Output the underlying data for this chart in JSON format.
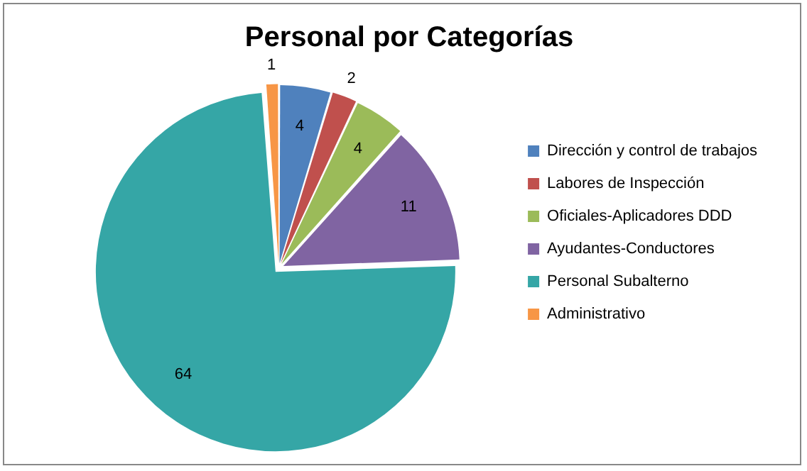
{
  "chart_data": {
    "type": "pie",
    "title": "Personal por Categorías",
    "categories": [
      "Dirección y control de trabajos",
      "Labores de Inspección",
      "Oficiales-Aplicadores DDD",
      "Ayudantes-Conductores",
      "Personal Subalterno",
      "Administrativo"
    ],
    "values": [
      4,
      2,
      4,
      11,
      64,
      1
    ],
    "colors": [
      "#4f81bd",
      "#c0504d",
      "#9bbb59",
      "#8064a2",
      "#35a6a6",
      "#f79646"
    ],
    "data_labels": true,
    "legend": "right"
  }
}
